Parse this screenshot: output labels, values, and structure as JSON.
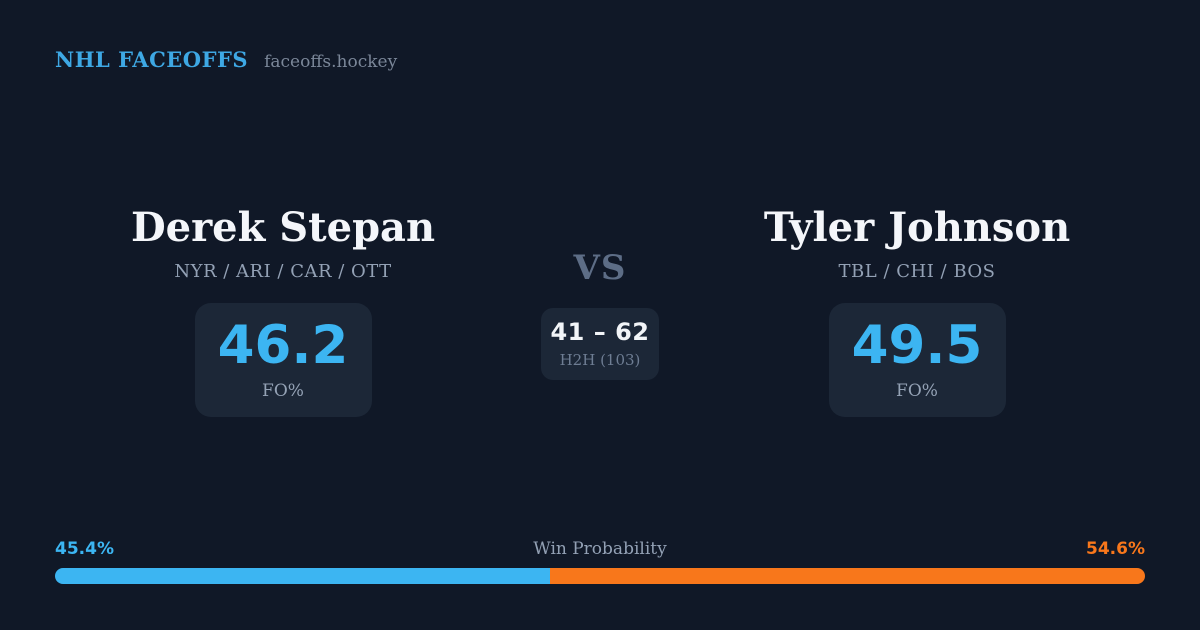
{
  "brand": {
    "title": "NHL FACEOFFS",
    "domain": "faceoffs.hockey"
  },
  "player_left": {
    "name": "Derek Stepan",
    "teams": "NYR / ARI / CAR / OTT",
    "fo_pct": "46.2",
    "fo_label": "FO%"
  },
  "matchup": {
    "vs_label": "VS",
    "h2h_score": "41 – 62",
    "h2h_label": "H2H (103)"
  },
  "player_right": {
    "name": "Tyler Johnson",
    "teams": "TBL / CHI / BOS",
    "fo_pct": "49.5",
    "fo_label": "FO%"
  },
  "win_probability": {
    "label": "Win Probability",
    "left_pct_label": "45.4%",
    "right_pct_label": "54.6%",
    "left_value": 45.4,
    "right_value": 54.6
  },
  "colors": {
    "background": "#101827",
    "card": "#1C2737",
    "accent_blue": "#3CB5F2",
    "accent_orange": "#F8771B",
    "muted_text": "#93A1B5"
  }
}
